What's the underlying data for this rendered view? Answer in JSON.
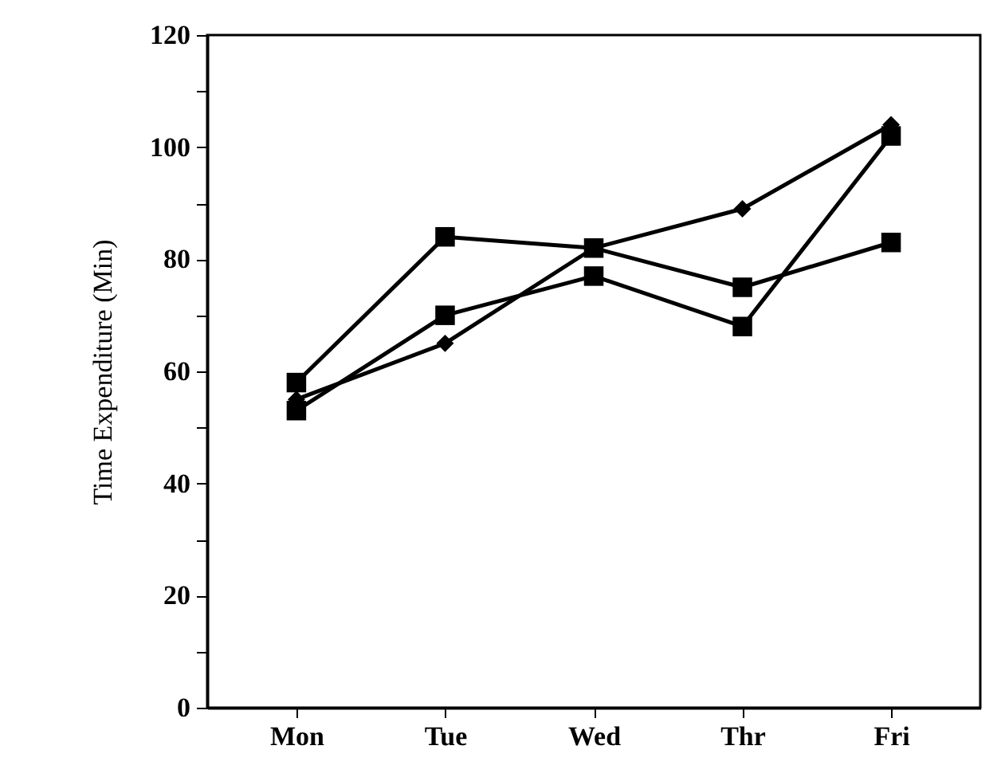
{
  "chart_data": {
    "type": "line",
    "ylabel": "Time Expenditure (Min)",
    "categories": [
      "Mon",
      "Tue",
      "Wed",
      "Thr",
      "Fri"
    ],
    "ylim": [
      0,
      120
    ],
    "yticks": [
      0,
      {
        "value": 10,
        "label": null
      },
      20,
      {
        "value": 30,
        "label": null
      },
      40,
      {
        "value": 50,
        "label": null
      },
      60,
      {
        "value": 70,
        "label": null
      },
      80,
      {
        "value": 90,
        "label": null
      },
      100,
      {
        "value": 110,
        "label": null
      },
      120
    ],
    "line_style": "solid",
    "series": [
      {
        "color": "#000000",
        "marker": "square",
        "values": [
          58,
          84,
          82,
          75,
          83
        ]
      },
      {
        "color": "#000000",
        "marker": "diamond",
        "values": [
          55,
          65,
          82,
          89,
          104
        ]
      },
      {
        "color": "#000000",
        "marker": "square",
        "values": [
          53,
          70,
          77,
          68,
          102
        ]
      }
    ]
  }
}
